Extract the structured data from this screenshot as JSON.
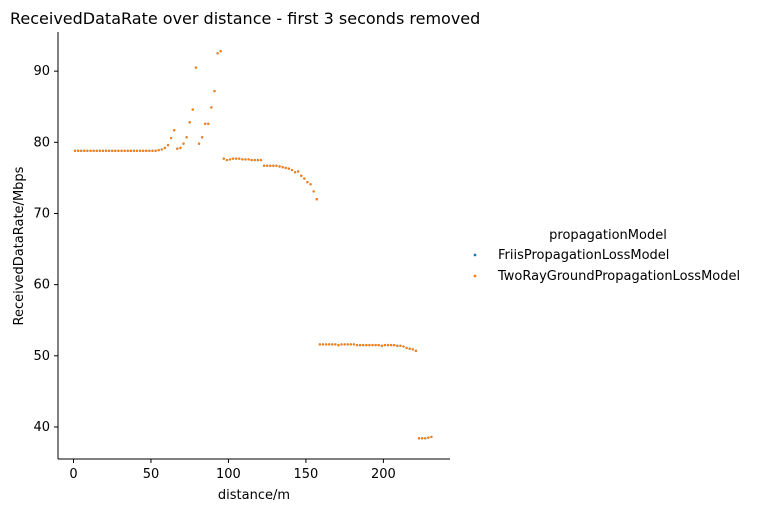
{
  "chart_data": {
    "type": "scatter",
    "title": "ReceivedDataRate over distance - first 3 seconds removed",
    "xlabel": "distance/m",
    "ylabel": "ReceivedDataRate/Mbps",
    "xlim": [
      -10,
      243
    ],
    "ylim": [
      35.5,
      95.5
    ],
    "xticks": [
      0,
      50,
      100,
      150,
      200
    ],
    "yticks": [
      40,
      50,
      60,
      70,
      80,
      90
    ],
    "grid": false,
    "legend": {
      "title": "propagationModel",
      "placement": "right"
    },
    "series": [
      {
        "name": "FriisPropagationLossModel",
        "color": "#1f77b4",
        "points": [
          [
            1,
            78.8
          ],
          [
            3,
            78.8
          ],
          [
            5,
            78.8
          ],
          [
            7,
            78.8
          ],
          [
            9,
            78.8
          ],
          [
            11,
            78.8
          ],
          [
            13,
            78.8
          ],
          [
            15,
            78.8
          ],
          [
            17,
            78.8
          ],
          [
            19,
            78.8
          ],
          [
            21,
            78.8
          ],
          [
            23,
            78.8
          ],
          [
            25,
            78.8
          ],
          [
            27,
            78.8
          ],
          [
            29,
            78.8
          ],
          [
            31,
            78.8
          ],
          [
            33,
            78.8
          ],
          [
            35,
            78.8
          ],
          [
            37,
            78.8
          ],
          [
            39,
            78.8
          ],
          [
            41,
            78.8
          ],
          [
            43,
            78.8
          ],
          [
            45,
            78.8
          ],
          [
            47,
            78.8
          ],
          [
            49,
            78.8
          ],
          [
            51,
            78.8
          ],
          [
            53,
            78.8
          ],
          [
            55,
            78.9
          ],
          [
            57,
            79.0
          ],
          [
            59,
            79.2
          ],
          [
            61,
            79.6
          ],
          [
            63,
            80.6
          ],
          [
            65,
            81.7
          ],
          [
            67,
            79.1
          ],
          [
            69,
            79.2
          ],
          [
            71,
            79.8
          ],
          [
            73,
            80.7
          ],
          [
            75,
            82.8
          ],
          [
            77,
            84.6
          ],
          [
            79,
            90.5
          ],
          [
            81,
            79.8
          ],
          [
            83,
            80.7
          ],
          [
            85,
            82.6
          ],
          [
            87,
            82.6
          ],
          [
            89,
            84.9
          ],
          [
            91,
            87.2
          ],
          [
            93,
            92.5
          ],
          [
            95,
            92.8
          ],
          [
            97,
            77.7
          ],
          [
            99,
            77.5
          ],
          [
            101,
            77.6
          ],
          [
            103,
            77.7
          ],
          [
            105,
            77.7
          ],
          [
            107,
            77.7
          ],
          [
            109,
            77.6
          ],
          [
            111,
            77.6
          ],
          [
            113,
            77.6
          ],
          [
            115,
            77.5
          ],
          [
            117,
            77.5
          ],
          [
            119,
            77.5
          ],
          [
            121,
            77.5
          ],
          [
            123,
            76.7
          ],
          [
            125,
            76.7
          ],
          [
            127,
            76.7
          ],
          [
            129,
            76.7
          ],
          [
            131,
            76.7
          ],
          [
            133,
            76.6
          ],
          [
            135,
            76.5
          ],
          [
            137,
            76.4
          ],
          [
            139,
            76.3
          ],
          [
            141,
            76.1
          ],
          [
            143,
            75.8
          ],
          [
            145,
            75.9
          ],
          [
            147,
            75.3
          ],
          [
            149,
            74.9
          ],
          [
            151,
            74.4
          ],
          [
            153,
            74.1
          ],
          [
            155,
            73.1
          ],
          [
            157,
            72.0
          ],
          [
            159,
            51.6
          ],
          [
            161,
            51.6
          ],
          [
            163,
            51.6
          ],
          [
            165,
            51.6
          ],
          [
            167,
            51.6
          ],
          [
            169,
            51.6
          ],
          [
            171,
            51.5
          ],
          [
            173,
            51.6
          ],
          [
            175,
            51.6
          ],
          [
            177,
            51.6
          ],
          [
            179,
            51.6
          ],
          [
            181,
            51.6
          ],
          [
            183,
            51.5
          ],
          [
            185,
            51.5
          ],
          [
            187,
            51.5
          ],
          [
            189,
            51.5
          ],
          [
            191,
            51.5
          ],
          [
            193,
            51.5
          ],
          [
            195,
            51.5
          ],
          [
            197,
            51.5
          ],
          [
            199,
            51.4
          ],
          [
            201,
            51.5
          ],
          [
            203,
            51.5
          ],
          [
            205,
            51.5
          ],
          [
            207,
            51.5
          ],
          [
            209,
            51.4
          ],
          [
            211,
            51.4
          ],
          [
            213,
            51.3
          ],
          [
            215,
            51.1
          ],
          [
            217,
            51.0
          ],
          [
            219,
            50.9
          ],
          [
            221,
            50.7
          ],
          [
            223,
            38.4
          ],
          [
            225,
            38.4
          ],
          [
            227,
            38.4
          ],
          [
            229,
            38.5
          ],
          [
            231,
            38.6
          ]
        ]
      },
      {
        "name": "TwoRayGroundPropagationLossModel",
        "color": "#ff7f0e",
        "points": [
          [
            1,
            78.8
          ],
          [
            3,
            78.8
          ],
          [
            5,
            78.8
          ],
          [
            7,
            78.8
          ],
          [
            9,
            78.8
          ],
          [
            11,
            78.8
          ],
          [
            13,
            78.8
          ],
          [
            15,
            78.8
          ],
          [
            17,
            78.8
          ],
          [
            19,
            78.8
          ],
          [
            21,
            78.8
          ],
          [
            23,
            78.8
          ],
          [
            25,
            78.8
          ],
          [
            27,
            78.8
          ],
          [
            29,
            78.8
          ],
          [
            31,
            78.8
          ],
          [
            33,
            78.8
          ],
          [
            35,
            78.8
          ],
          [
            37,
            78.8
          ],
          [
            39,
            78.8
          ],
          [
            41,
            78.8
          ],
          [
            43,
            78.8
          ],
          [
            45,
            78.8
          ],
          [
            47,
            78.8
          ],
          [
            49,
            78.8
          ],
          [
            51,
            78.8
          ],
          [
            53,
            78.8
          ],
          [
            55,
            78.9
          ],
          [
            57,
            79.0
          ],
          [
            59,
            79.2
          ],
          [
            61,
            79.6
          ],
          [
            63,
            80.6
          ],
          [
            65,
            81.7
          ],
          [
            67,
            79.1
          ],
          [
            69,
            79.2
          ],
          [
            71,
            79.8
          ],
          [
            73,
            80.7
          ],
          [
            75,
            82.8
          ],
          [
            77,
            84.6
          ],
          [
            79,
            90.5
          ],
          [
            81,
            79.8
          ],
          [
            83,
            80.7
          ],
          [
            85,
            82.6
          ],
          [
            87,
            82.6
          ],
          [
            89,
            84.9
          ],
          [
            91,
            87.2
          ],
          [
            93,
            92.5
          ],
          [
            95,
            92.8
          ],
          [
            97,
            77.7
          ],
          [
            99,
            77.5
          ],
          [
            101,
            77.6
          ],
          [
            103,
            77.7
          ],
          [
            105,
            77.7
          ],
          [
            107,
            77.7
          ],
          [
            109,
            77.6
          ],
          [
            111,
            77.6
          ],
          [
            113,
            77.6
          ],
          [
            115,
            77.5
          ],
          [
            117,
            77.5
          ],
          [
            119,
            77.5
          ],
          [
            121,
            77.5
          ],
          [
            123,
            76.7
          ],
          [
            125,
            76.7
          ],
          [
            127,
            76.7
          ],
          [
            129,
            76.7
          ],
          [
            131,
            76.7
          ],
          [
            133,
            76.6
          ],
          [
            135,
            76.5
          ],
          [
            137,
            76.4
          ],
          [
            139,
            76.3
          ],
          [
            141,
            76.1
          ],
          [
            143,
            75.8
          ],
          [
            145,
            75.9
          ],
          [
            147,
            75.3
          ],
          [
            149,
            74.9
          ],
          [
            151,
            74.4
          ],
          [
            153,
            74.1
          ],
          [
            155,
            73.1
          ],
          [
            157,
            72.0
          ],
          [
            159,
            51.6
          ],
          [
            161,
            51.6
          ],
          [
            163,
            51.6
          ],
          [
            165,
            51.6
          ],
          [
            167,
            51.6
          ],
          [
            169,
            51.6
          ],
          [
            171,
            51.5
          ],
          [
            173,
            51.6
          ],
          [
            175,
            51.6
          ],
          [
            177,
            51.6
          ],
          [
            179,
            51.6
          ],
          [
            181,
            51.6
          ],
          [
            183,
            51.5
          ],
          [
            185,
            51.5
          ],
          [
            187,
            51.5
          ],
          [
            189,
            51.5
          ],
          [
            191,
            51.5
          ],
          [
            193,
            51.5
          ],
          [
            195,
            51.5
          ],
          [
            197,
            51.5
          ],
          [
            199,
            51.4
          ],
          [
            201,
            51.5
          ],
          [
            203,
            51.5
          ],
          [
            205,
            51.5
          ],
          [
            207,
            51.5
          ],
          [
            209,
            51.4
          ],
          [
            211,
            51.4
          ],
          [
            213,
            51.3
          ],
          [
            215,
            51.1
          ],
          [
            217,
            51.0
          ],
          [
            219,
            50.9
          ],
          [
            221,
            50.7
          ],
          [
            223,
            38.4
          ],
          [
            225,
            38.4
          ],
          [
            227,
            38.4
          ],
          [
            229,
            38.5
          ],
          [
            231,
            38.6
          ]
        ]
      }
    ]
  }
}
